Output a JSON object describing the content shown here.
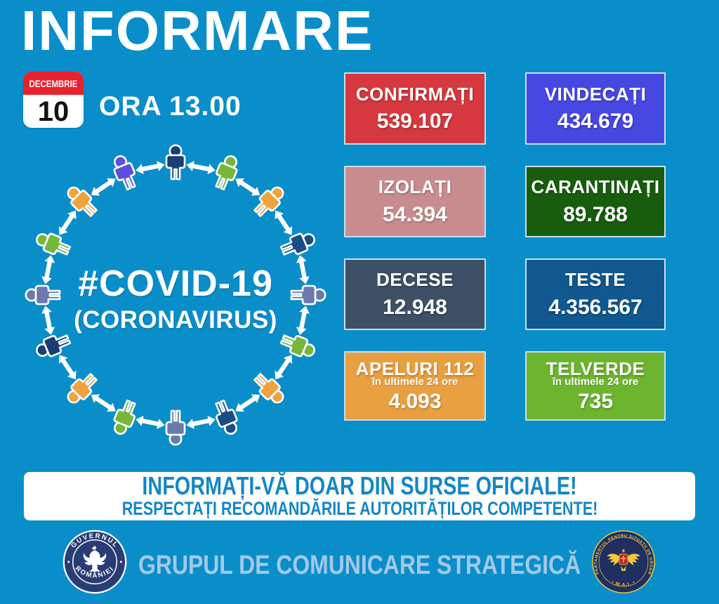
{
  "page": {
    "background": "#0A8ECA"
  },
  "header": {
    "title": "INFORMARE",
    "calendar_month": "DECEMBRIE",
    "calendar_day": "10",
    "time": "ORA 13.00"
  },
  "covid_circle": {
    "hashtag": "#COVID-19",
    "subtitle": "(CORONAVIRUS)",
    "person_colors": [
      "#1B3E75",
      "#76B63A",
      "#F0A23F",
      "#1C4C86",
      "#6B79AD",
      "#76B63A",
      "#F0A23F",
      "#1C4C86",
      "#6B79AD",
      "#76B63A",
      "#F0A23F",
      "#1B3E75",
      "#6B79AD",
      "#76B63A",
      "#F0A23F",
      "#5A4FE0"
    ]
  },
  "stats": [
    {
      "label": "CONFIRMAȚI",
      "value": "539.107",
      "bg": "#D5383E"
    },
    {
      "label": "VINDECAȚI",
      "value": "434.679",
      "bg": "#4747E2"
    },
    {
      "label": "IZOLAȚI",
      "value": "54.394",
      "bg": "#C98C8E"
    },
    {
      "label": "CARANTINAȚI",
      "value": "89.788",
      "bg": "#185D0E"
    },
    {
      "label": "DECESE",
      "value": "12.948",
      "bg": "#3E5065"
    },
    {
      "label": "TESTE",
      "value": "4.356.567",
      "bg": "#10588F"
    },
    {
      "label": "APELURI 112",
      "sub": "în ultimele 24 ore",
      "value": "4.093",
      "bg": "#E89F40"
    },
    {
      "label": "TELVERDE",
      "sub": "în ultimele 24 ore",
      "value": "735",
      "bg": "#6EB52F"
    }
  ],
  "banner": {
    "line1": "INFORMAȚI-VĂ DOAR DIN SURSE OFICIALE!",
    "line2": "RESPECTAȚI RECOMANDĂRILE AUTORITĂȚILOR COMPETENTE!"
  },
  "footer": {
    "gov_seal_top": "GUVERNUL",
    "gov_seal_bottom": "ROMÂNIEI",
    "text": "GRUPUL DE COMUNICARE STRATEGICĂ",
    "dsu_seal_ring": "DEPARTAMENTUL PENTRU SITUAȚII DE URGENȚĂ",
    "dsu_seal_bottom": "• M.A.I. •"
  },
  "colors": {
    "background": "#0A8ECA",
    "banner_text": "#1487C5",
    "footer_text": "#A3C9E8",
    "stat_border": "#C8DFEF",
    "calendar_red": "#E8212E",
    "gov_seal_navy": "#2A3C74",
    "dsu_seal_navy": "#1F2F62",
    "dsu_gold": "#F2C83B",
    "dsu_red": "#C22227"
  }
}
